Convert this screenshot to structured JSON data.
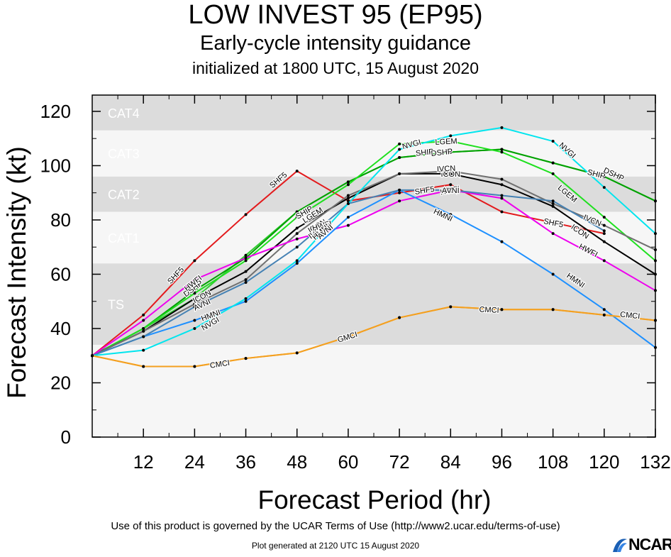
{
  "chart_data": {
    "type": "line",
    "title": "LOW INVEST 95 (EP95)",
    "subtitle": "Early-cycle intensity guidance",
    "subtitle2": "initialized at 1800 UTC, 15 August 2020",
    "xlabel": "Forecast Period (hr)",
    "ylabel": "Forecast Intensity (kt)",
    "xlim": [
      0,
      132
    ],
    "ylim": [
      0,
      126
    ],
    "xticks": [
      12,
      24,
      36,
      48,
      60,
      72,
      84,
      96,
      108,
      120,
      132
    ],
    "yticks": [
      0,
      20,
      40,
      60,
      80,
      100,
      120
    ],
    "bands": [
      {
        "label": "",
        "y0": 0,
        "y1": 34,
        "color": "#f6f6f6"
      },
      {
        "label": "TS",
        "y0": 34,
        "y1": 64,
        "color": "#dcdcdc"
      },
      {
        "label": "CAT1",
        "y0": 64,
        "y1": 83,
        "color": "#f6f6f6"
      },
      {
        "label": "CAT2",
        "y0": 83,
        "y1": 96,
        "color": "#dcdcdc"
      },
      {
        "label": "CAT3",
        "y0": 96,
        "y1": 113,
        "color": "#f6f6f6"
      },
      {
        "label": "CAT4",
        "y0": 113,
        "y1": 126,
        "color": "#dcdcdc"
      }
    ],
    "series": [
      {
        "name": "SHF5",
        "color": "#e31a1c",
        "x": [
          0,
          12,
          24,
          36,
          48,
          60,
          72,
          84,
          96,
          108,
          120
        ],
        "y": [
          30,
          45,
          65,
          82,
          98,
          87,
          90,
          93,
          83,
          79,
          75
        ],
        "labels": [
          [
            20,
            60
          ],
          [
            44,
            95
          ],
          [
            78,
            91
          ],
          [
            108,
            79
          ]
        ]
      },
      {
        "name": "SHIP",
        "color": "#33cc33",
        "x": [
          0,
          12,
          24,
          36,
          48,
          60,
          72,
          84,
          96,
          108,
          120,
          132
        ],
        "y": [
          30,
          40,
          51,
          67,
          83,
          94,
          103,
          105,
          106,
          101,
          96,
          87
        ],
        "labels": [
          [
            50,
            83
          ],
          [
            78,
            105
          ],
          [
            118,
            97
          ]
        ]
      },
      {
        "name": "DSHP",
        "color": "#00a000",
        "x": [
          0,
          12,
          24,
          36,
          48,
          60,
          72,
          84,
          96,
          108,
          120,
          132
        ],
        "y": [
          30,
          40,
          54,
          66,
          83,
          94,
          103,
          105,
          106,
          101,
          96,
          87
        ],
        "labels": [
          [
            24,
            55
          ],
          [
            82,
            105
          ],
          [
            122,
            97
          ]
        ]
      },
      {
        "name": "LGEM",
        "color": "#1fe01f",
        "x": [
          0,
          12,
          24,
          36,
          48,
          60,
          72,
          84,
          96,
          108,
          120,
          132
        ],
        "y": [
          30,
          40,
          53,
          65,
          81,
          93,
          108,
          109,
          105,
          97,
          81,
          65
        ],
        "labels": [
          [
            52,
            82
          ],
          [
            83,
            109
          ],
          [
            111,
            90
          ]
        ]
      },
      {
        "name": "ICON",
        "color": "#000000",
        "x": [
          0,
          12,
          24,
          36,
          48,
          60,
          72,
          84,
          96,
          108,
          120,
          132
        ],
        "y": [
          30,
          39,
          51,
          61,
          77,
          88,
          97,
          97,
          93,
          85,
          72,
          60
        ],
        "labels": [
          [
            26,
            52
          ],
          [
            53,
            78
          ],
          [
            84,
            97
          ],
          [
            114,
            76
          ]
        ]
      },
      {
        "name": "IVCN",
        "color": "#707070",
        "x": [
          0,
          12,
          24,
          36,
          48,
          60,
          72,
          84,
          96,
          108,
          120,
          132
        ],
        "y": [
          30,
          39,
          49,
          58,
          75,
          89,
          97,
          98,
          95,
          86,
          78,
          69
        ],
        "labels": [
          [
            53,
            76
          ],
          [
            83,
            99
          ],
          [
            117,
            80
          ]
        ]
      },
      {
        "name": "HWFI",
        "color": "#ee00ee",
        "x": [
          0,
          12,
          24,
          36,
          48,
          60,
          72,
          84,
          96,
          108,
          120,
          132
        ],
        "y": [
          30,
          43,
          58,
          66,
          73,
          78,
          87,
          91,
          88,
          75,
          65,
          54
        ],
        "labels": [
          [
            24,
            57
          ],
          [
            54,
            78
          ],
          [
            84,
            91
          ],
          [
            116,
            69
          ]
        ]
      },
      {
        "name": "HMNI",
        "color": "#1e90ff",
        "x": [
          0,
          12,
          24,
          36,
          48,
          60,
          72,
          84,
          96,
          108,
          120,
          132
        ],
        "y": [
          30,
          37,
          43,
          50,
          64,
          81,
          91,
          82,
          72,
          60,
          47,
          33
        ],
        "labels": [
          [
            28,
            45
          ],
          [
            54,
            76
          ],
          [
            82,
            82
          ],
          [
            113,
            58
          ]
        ]
      },
      {
        "name": "AVNI",
        "color": "#4682b4",
        "x": [
          0,
          12,
          24,
          36,
          48,
          60,
          72,
          84,
          96,
          108,
          120
        ],
        "y": [
          30,
          37,
          48,
          57,
          70,
          86,
          91,
          91,
          89,
          87,
          76
        ],
        "labels": [
          [
            26,
            49
          ],
          [
            55,
            76
          ],
          [
            84,
            91
          ]
        ]
      },
      {
        "name": "NVGI",
        "color": "#00e5ee",
        "x": [
          0,
          12,
          24,
          36,
          48,
          60,
          72,
          84,
          96,
          108,
          120,
          132
        ],
        "y": [
          30,
          32,
          40,
          51,
          65,
          86,
          106,
          111,
          114,
          109,
          92,
          75
        ],
        "labels": [
          [
            28,
            42
          ],
          [
            75,
            108
          ],
          [
            111,
            106
          ]
        ]
      },
      {
        "name": "GMCI",
        "color": "#f4a020",
        "x": [
          0,
          12,
          24,
          36,
          48,
          60,
          72,
          84,
          96,
          108,
          120,
          132
        ],
        "y": [
          30,
          26,
          26,
          29,
          31,
          37,
          44,
          48,
          47,
          47,
          45,
          43
        ],
        "labels": [
          [
            60,
            37
          ]
        ]
      },
      {
        "name": "CMCI",
        "color": "#f4a020",
        "x": [
          0,
          12,
          24,
          36,
          48,
          60,
          72,
          84,
          96,
          108,
          120,
          132
        ],
        "y": [
          30,
          26,
          26,
          29,
          31,
          37,
          44,
          48,
          47,
          47,
          45,
          43
        ],
        "labels": [
          [
            30,
            27
          ],
          [
            93,
            47
          ],
          [
            126,
            45
          ]
        ]
      }
    ]
  },
  "footer": {
    "terms": "Use of this product is governed by the UCAR Terms of Use (http://www2.ucar.edu/terms-of-use)",
    "generated": "Plot generated at 2120 UTC   15 August 2020",
    "logo": "NCAR"
  }
}
